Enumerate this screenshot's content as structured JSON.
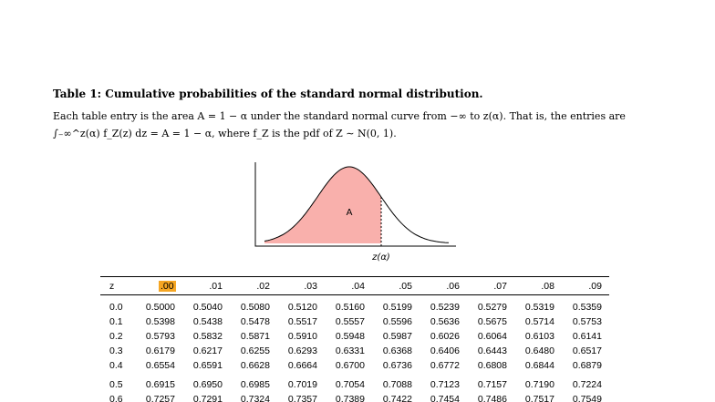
{
  "caption": {
    "title": "Table 1: Cumulative probabilities of the standard normal distribution.",
    "description": [
      "Each table entry is the area A = 1 − α under the standard normal curve from −∞ to z(α). That is, the entries are",
      "∫₋∞^z(α) f_Z(z) dz = A = 1 − α, where f_Z is the pdf of Z ∼ N(0, 1)."
    ]
  },
  "figure": {
    "area_label": "A",
    "x_label": "z(α)"
  },
  "table": {
    "header": [
      "z",
      ".00",
      ".01",
      ".02",
      ".03",
      ".04",
      ".05",
      ".06",
      ".07",
      ".08",
      ".09"
    ],
    "rows": [
      [
        "0.0",
        "0.5000",
        "0.5040",
        "0.5080",
        "0.5120",
        "0.5160",
        "0.5199",
        "0.5239",
        "0.5279",
        "0.5319",
        "0.5359"
      ],
      [
        "0.1",
        "0.5398",
        "0.5438",
        "0.5478",
        "0.5517",
        "0.5557",
        "0.5596",
        "0.5636",
        "0.5675",
        "0.5714",
        "0.5753"
      ],
      [
        "0.2",
        "0.5793",
        "0.5832",
        "0.5871",
        "0.5910",
        "0.5948",
        "0.5987",
        "0.6026",
        "0.6064",
        "0.6103",
        "0.6141"
      ],
      [
        "0.3",
        "0.6179",
        "0.6217",
        "0.6255",
        "0.6293",
        "0.6331",
        "0.6368",
        "0.6406",
        "0.6443",
        "0.6480",
        "0.6517"
      ],
      [
        "0.4",
        "0.6554",
        "0.6591",
        "0.6628",
        "0.6664",
        "0.6700",
        "0.6736",
        "0.6772",
        "0.6808",
        "0.6844",
        "0.6879"
      ],
      [
        "0.5",
        "0.6915",
        "0.6950",
        "0.6985",
        "0.7019",
        "0.7054",
        "0.7088",
        "0.7123",
        "0.7157",
        "0.7190",
        "0.7224"
      ],
      [
        "0.6",
        "0.7257",
        "0.7291",
        "0.7324",
        "0.7357",
        "0.7389",
        "0.7422",
        "0.7454",
        "0.7486",
        "0.7517",
        "0.7549"
      ]
    ]
  }
}
